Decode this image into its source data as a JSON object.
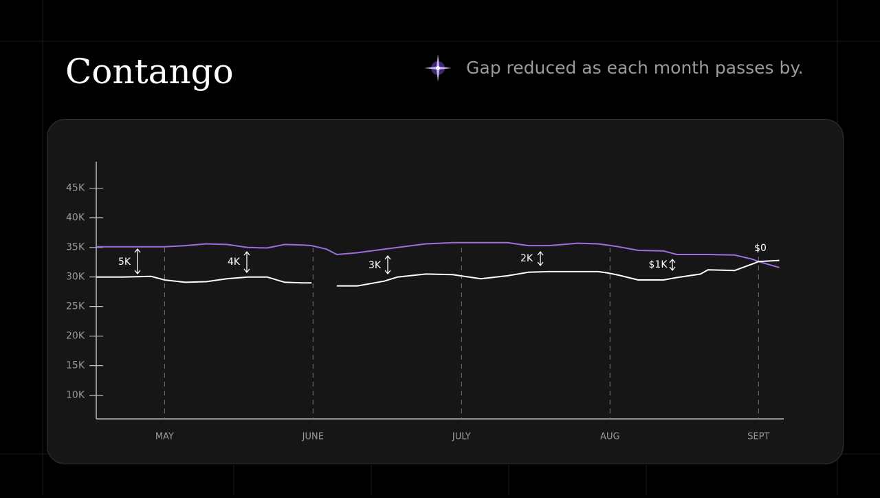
{
  "chart_data": {
    "type": "line",
    "title": "Contango",
    "subtitle": "Gap reduced as each month passes by.",
    "x": [
      -0.46,
      -0.28,
      -0.09,
      0,
      0.14,
      0.28,
      0.42,
      0.56,
      0.69,
      0.81,
      0.93,
      0.99,
      1.09,
      1.16,
      1.3,
      1.48,
      1.57,
      1.76,
      1.94,
      2.13,
      2.31,
      2.45,
      2.59,
      2.78,
      2.92,
      2.98,
      3.06,
      3.19,
      3.36,
      3.45,
      3.61,
      3.66,
      3.84,
      3.96,
      4.0,
      4.14
    ],
    "series": [
      {
        "color": "#9b6fe0",
        "values": [
          35100,
          35100,
          35100,
          35100,
          35300,
          35600,
          35500,
          35000,
          34900,
          35500,
          35400,
          35300,
          34700,
          33800,
          34100,
          34700,
          35000,
          35600,
          35800,
          35800,
          35800,
          35300,
          35300,
          35700,
          35600,
          35400,
          35100,
          34500,
          34400,
          33800,
          33800,
          33800,
          33700,
          33000,
          32600,
          31600
        ]
      },
      {
        "color": "#ffffff",
        "values": [
          30000,
          30000,
          30100,
          29500,
          29100,
          29200,
          29700,
          30000,
          30000,
          29100,
          29000,
          29000,
          null,
          28500,
          28500,
          29300,
          30000,
          30500,
          30400,
          29700,
          30200,
          30800,
          30900,
          30900,
          30900,
          30700,
          30300,
          29500,
          29500,
          29900,
          30500,
          31200,
          31100,
          32200,
          32600,
          32800
        ]
      }
    ],
    "xlim": [
      -0.46,
      4.17
    ],
    "xticks": [
      {
        "value": 0,
        "label": "MAY"
      },
      {
        "value": 1,
        "label": "JUNE"
      },
      {
        "value": 2,
        "label": "JULY"
      },
      {
        "value": 3,
        "label": "AUG"
      },
      {
        "value": 4,
        "label": "SEPT"
      }
    ],
    "ylim": [
      6000,
      49500
    ],
    "yticks": [
      {
        "value": 10000,
        "label": "10K"
      },
      {
        "value": 15000,
        "label": "15K"
      },
      {
        "value": 20000,
        "label": "20K"
      },
      {
        "value": 25000,
        "label": "25K"
      },
      {
        "value": 30000,
        "label": "30K"
      },
      {
        "value": 35000,
        "label": "35K"
      },
      {
        "value": 40000,
        "label": "40K"
      },
      {
        "value": 45000,
        "label": "45K"
      }
    ],
    "annotations": [
      "5K",
      "4K",
      "3K",
      "2K",
      "$1K",
      "$0"
    ]
  }
}
